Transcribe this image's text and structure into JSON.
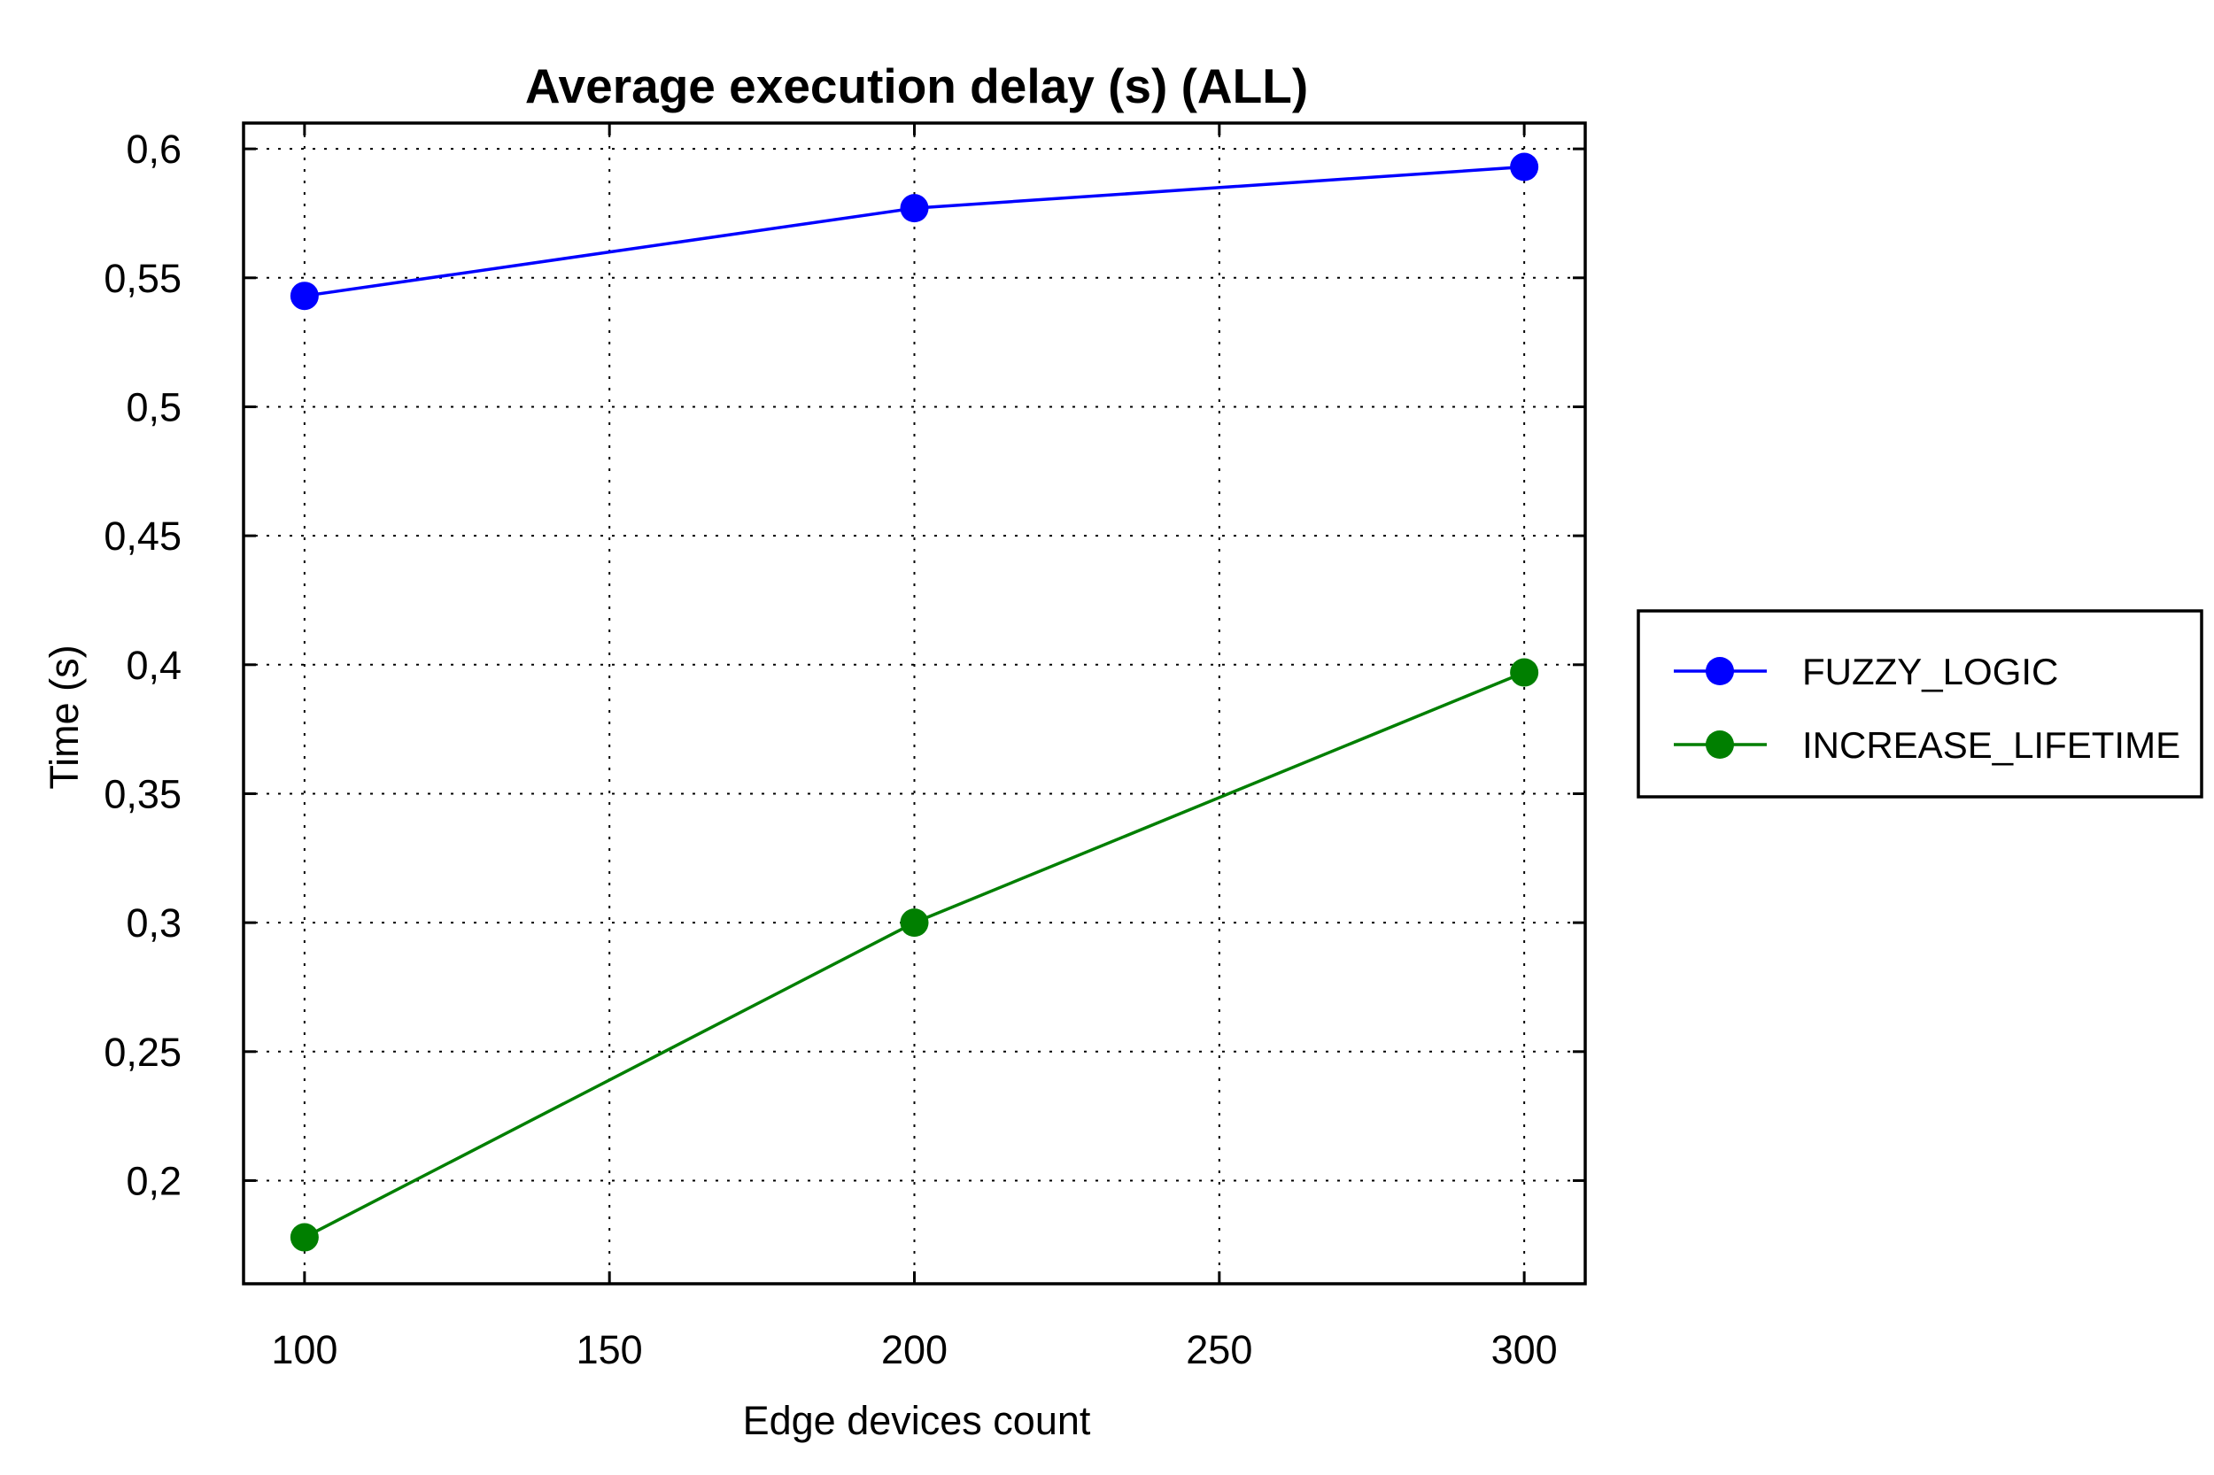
{
  "chart_data": {
    "type": "line",
    "title": "Average execution delay (s) (ALL)",
    "xlabel": "Edge devices count",
    "ylabel": "Time (s)",
    "xlim": [
      90,
      310
    ],
    "ylim": [
      0.16,
      0.61
    ],
    "x_ticks": [
      100,
      150,
      200,
      250,
      300
    ],
    "x_tick_labels": [
      "100",
      "150",
      "200",
      "250",
      "300"
    ],
    "y_ticks": [
      0.2,
      0.25,
      0.3,
      0.35,
      0.4,
      0.45,
      0.5,
      0.55,
      0.6
    ],
    "y_tick_labels": [
      "0,2",
      "0,25",
      "0,3",
      "0,35",
      "0,4",
      "0,45",
      "0,5",
      "0,55",
      "0,6"
    ],
    "grid": true,
    "legend_position": "outside-right",
    "series": [
      {
        "name": "FUZZY_LOGIC",
        "color": "#0000ff",
        "x": [
          100,
          200,
          300
        ],
        "y": [
          0.543,
          0.577,
          0.593
        ]
      },
      {
        "name": "INCREASE_LIFETIME",
        "color": "#007f00",
        "x": [
          100,
          200,
          300
        ],
        "y": [
          0.178,
          0.3,
          0.397
        ]
      }
    ]
  }
}
